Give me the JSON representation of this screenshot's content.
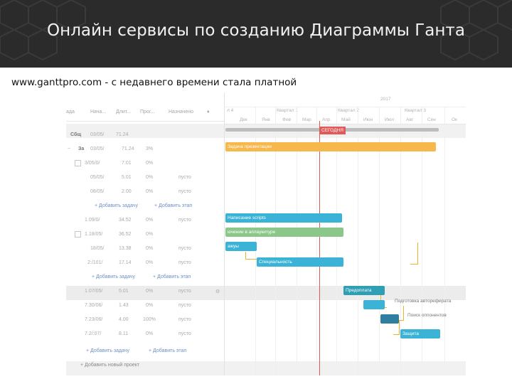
{
  "slide": {
    "title": "Онлайн сервисы по созданию Диаграммы Ганта",
    "subtitle": "www.ganttpro.com  - с недавнего времени стала платной"
  },
  "colors": {
    "header_bg": "#2b2b2b",
    "bar_blue": "#3ab3d6",
    "bar_teal": "#2f9fb5",
    "bar_green": "#8cc78a",
    "bar_orange": "#f7b84b",
    "today": "#e05a5a",
    "link": "#6c8fc7"
  },
  "grid": {
    "columns": [
      "ада",
      "Нача...",
      "Длит...",
      "Прог...",
      "Назначено",
      "♦"
    ],
    "rows": [
      {
        "name": "Сбщ",
        "start": "03/05/",
        "dur": "71.24",
        "prog": "",
        "assign": ""
      },
      {
        "name": "За",
        "start": "03/05/",
        "dur": "71.24",
        "prog": "3%",
        "assign": ""
      },
      {
        "name": "",
        "start": "3/05/0/",
        "dur": "7.01",
        "prog": "0%",
        "assign": ""
      },
      {
        "name": "",
        "start": "05/05/",
        "dur": "5.01",
        "prog": "0%",
        "assign": "пусто"
      },
      {
        "name": "",
        "start": "08/05/",
        "dur": "2.00",
        "prog": "0%",
        "assign": "пусто"
      },
      {
        "name": "",
        "start": "",
        "dur": "",
        "prog": "",
        "assign": ""
      },
      {
        "name": "",
        "start": "1.09/0/",
        "dur": "34.52",
        "prog": "0%",
        "assign": "пусто"
      },
      {
        "name": "",
        "start": "1.18/05/",
        "dur": "36.52",
        "prog": "0%",
        "assign": ""
      },
      {
        "name": "",
        "start": "18/05/",
        "dur": "13.38",
        "prog": "0%",
        "assign": "пусто"
      },
      {
        "name": "",
        "start": "2:/101/",
        "dur": "17.14",
        "prog": "0%",
        "assign": "пусто"
      },
      {
        "name": "",
        "start": "",
        "dur": "",
        "prog": "",
        "assign": ""
      },
      {
        "name": "",
        "start": "1.07/05/",
        "dur": "5.01",
        "prog": "0%",
        "assign": "пусто"
      },
      {
        "name": "",
        "start": "7.30/06/",
        "dur": "1.43",
        "prog": "0%",
        "assign": "пусто"
      },
      {
        "name": "",
        "start": "7.23/06/",
        "dur": "4.00",
        "prog": "100%",
        "assign": "пусто"
      },
      {
        "name": "",
        "start": "7.2/:07/",
        "dur": "8.11",
        "prog": "0%",
        "assign": "пусто"
      }
    ],
    "add_task_1": "+ Добавить задачу",
    "add_stage_1": "+ Добавить этап",
    "add_task_2": "+ Добавить задачу",
    "add_stage_2": "+ Добавить этап",
    "add_task_3": "+ Добавить задачу",
    "add_stage_3": "+ Добавить этап",
    "add_project": "+ Добавить новый проект"
  },
  "timeline": {
    "year": "2017",
    "quarters": [
      "л 4",
      "Квартал 1",
      "Квартал 2",
      "Квартал 3"
    ],
    "months": [
      "Дек",
      "Янв",
      "Фев",
      "Мар",
      "Апр",
      "Май",
      "Июн",
      "Июл",
      "Авг",
      "Сен",
      "Ок"
    ],
    "today_label": "СЕГОДНЯ"
  },
  "bars": [
    {
      "label": "Задача презентации",
      "color": "#f7b84b"
    },
    {
      "label": "Написание scripts",
      "color": "#3ab3d6"
    },
    {
      "label": "ючение в аплаукитуре",
      "color": "#8cc78a"
    },
    {
      "label": "ажуы",
      "color": "#3ab3d6"
    },
    {
      "label": "Специальность",
      "color": "#3ab3d6"
    },
    {
      "label": "Предоплата",
      "color": "#2f9fb5"
    },
    {
      "label": "",
      "color": "#3ab3d6"
    },
    {
      "label": "",
      "color": "#2f7fa0"
    },
    {
      "label": "Защита",
      "color": "#3ab3d6"
    }
  ],
  "bar_side_labels": [
    "Подготовка автореферата",
    "Поиск оппонентов"
  ]
}
